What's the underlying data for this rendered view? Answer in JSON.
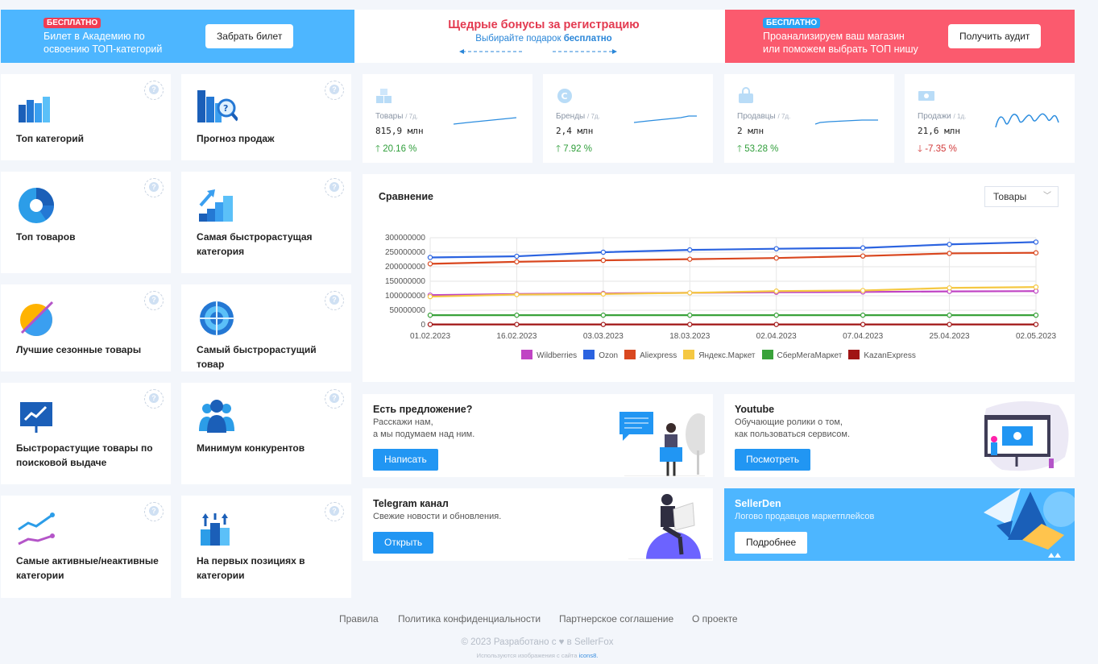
{
  "banners": {
    "left": {
      "badge": "БЕСПЛАТНО",
      "line1": "Билет в Академию по",
      "line2": "освоению ТОП-категорий",
      "button": "Забрать билет"
    },
    "middle": {
      "title": "Щедрые бонусы за регистрацию",
      "subtitle": "Выбирайте подарок",
      "subtitle_bold": "бесплатно"
    },
    "right": {
      "badge": "БЕСПЛАТНО",
      "line1": "Проанализируем ваш магазин",
      "line2": "или поможем выбрать ТОП нишу",
      "button": "Получить аудит"
    }
  },
  "tools": [
    {
      "line1": "Топ категорий",
      "line2": "",
      "icon": "bar-chart-icon"
    },
    {
      "line1": "Прогноз продаж",
      "line2": "",
      "icon": "forecast-icon"
    },
    {
      "line1": "Топ товаров",
      "line2": "",
      "icon": "pie-chart-icon"
    },
    {
      "line1": "Самая быстрорастущая",
      "line2": "категория",
      "icon": "growth-stairs-icon"
    },
    {
      "line1": "Лучшие сезонные товары",
      "line2": "",
      "icon": "season-icon"
    },
    {
      "line1": "Самый быстрорастущий товар",
      "line2": "",
      "icon": "target-icon"
    },
    {
      "line1": "Быстрорастущие товары по",
      "line2": "поисковой выдаче",
      "icon": "presentation-icon"
    },
    {
      "line1": "Минимум конкурентов",
      "line2": "",
      "icon": "users-icon"
    },
    {
      "line1": "Самые активные/неактивные",
      "line2": "категории",
      "icon": "trend-lines-icon"
    },
    {
      "line1": "На первых позициях в",
      "line2": "категории",
      "icon": "top-positions-icon"
    }
  ],
  "help_mark": "?",
  "stats": [
    {
      "label": "Товары",
      "period": "/ 7д.",
      "value": "815,9 млн",
      "change": "20.16 %",
      "direction": "up",
      "arrow": "🡑",
      "icon": "box-icon"
    },
    {
      "label": "Бренды",
      "period": "/ 7д.",
      "value": "2,4 млн",
      "change": "7.92 %",
      "direction": "up",
      "arrow": "🡑",
      "icon": "copyright-icon"
    },
    {
      "label": "Продавцы",
      "period": "/ 7д.",
      "value": "2 млн",
      "change": "53.28 %",
      "direction": "up",
      "arrow": "🡑",
      "icon": "shop-bag-icon"
    },
    {
      "label": "Продажи",
      "period": "/ 1д.",
      "value": "21,6 млн",
      "change": "-7.35 %",
      "direction": "down",
      "arrow": "🡓",
      "icon": "money-icon"
    }
  ],
  "chart_section": {
    "title": "Сравнение",
    "select_value": "Товары"
  },
  "chart_data": {
    "type": "line",
    "x": [
      "01.02.2023",
      "16.02.2023",
      "03.03.2023",
      "18.03.2023",
      "02.04.2023",
      "07.04.2023",
      "25.04.2023",
      "02.05.2023"
    ],
    "y_ticks": [
      "300000000",
      "250000000",
      "200000000",
      "150000000",
      "100000000",
      "50000000",
      "0"
    ],
    "ylim": [
      0,
      300000000
    ],
    "grid": true,
    "legend_position": "bottom",
    "series": [
      {
        "name": "Wildberries",
        "color": "#c044c4",
        "values": [
          102000000,
          106000000,
          108000000,
          110000000,
          112000000,
          113000000,
          115000000,
          116000000
        ]
      },
      {
        "name": "Ozon",
        "color": "#2b63e0",
        "values": [
          232000000,
          236000000,
          250000000,
          258000000,
          262000000,
          265000000,
          277000000,
          285000000
        ]
      },
      {
        "name": "Aliexpress",
        "color": "#d9471f",
        "values": [
          210000000,
          217000000,
          222000000,
          226000000,
          230000000,
          237000000,
          246000000,
          248000000
        ]
      },
      {
        "name": "Яндекс.Маркет",
        "color": "#f5c842",
        "values": [
          97000000,
          104000000,
          106000000,
          110000000,
          116000000,
          118000000,
          127000000,
          130000000
        ]
      },
      {
        "name": "СберМегаМаркет",
        "color": "#39a23a",
        "values": [
          33000000,
          33000000,
          33000000,
          33000000,
          33000000,
          33000000,
          33000000,
          33000000
        ]
      },
      {
        "name": "KazanExpress",
        "color": "#a01414",
        "values": [
          1000000,
          1000000,
          1000000,
          1000000,
          1000000,
          1000000,
          1000000,
          1000000
        ]
      }
    ]
  },
  "promos": {
    "offer": {
      "title": "Есть предложение?",
      "line1": "Расскажи нам,",
      "line2": "а мы подумаем над ним.",
      "button": "Написать"
    },
    "youtube": {
      "title": "Youtube",
      "line1": "Обучающие ролики о том,",
      "line2": "как пользоваться сервисом.",
      "button": "Посмотреть"
    },
    "telegram": {
      "title": "Telegram канал",
      "line1": "Свежие новости и обновления.",
      "button": "Открыть"
    },
    "sellerden": {
      "title": "SellerDen",
      "line1": "Логово продавцов маркетплейсов",
      "button": "Подробнее"
    }
  },
  "footer": {
    "links": [
      "Правила",
      "Политика конфиденциальности",
      "Партнерское соглашение",
      "О проекте"
    ],
    "copyright": "© 2023 Разработано с ♥ в SellerFox",
    "used_prefix": "Используются изображения с сайта",
    "used_link": "icons8."
  },
  "colors": {
    "accent": "#2196f3",
    "up": "#2f9e3a",
    "down": "#d23a3a",
    "banner_blue": "#4db6ff",
    "banner_red": "#fb5a6e"
  }
}
